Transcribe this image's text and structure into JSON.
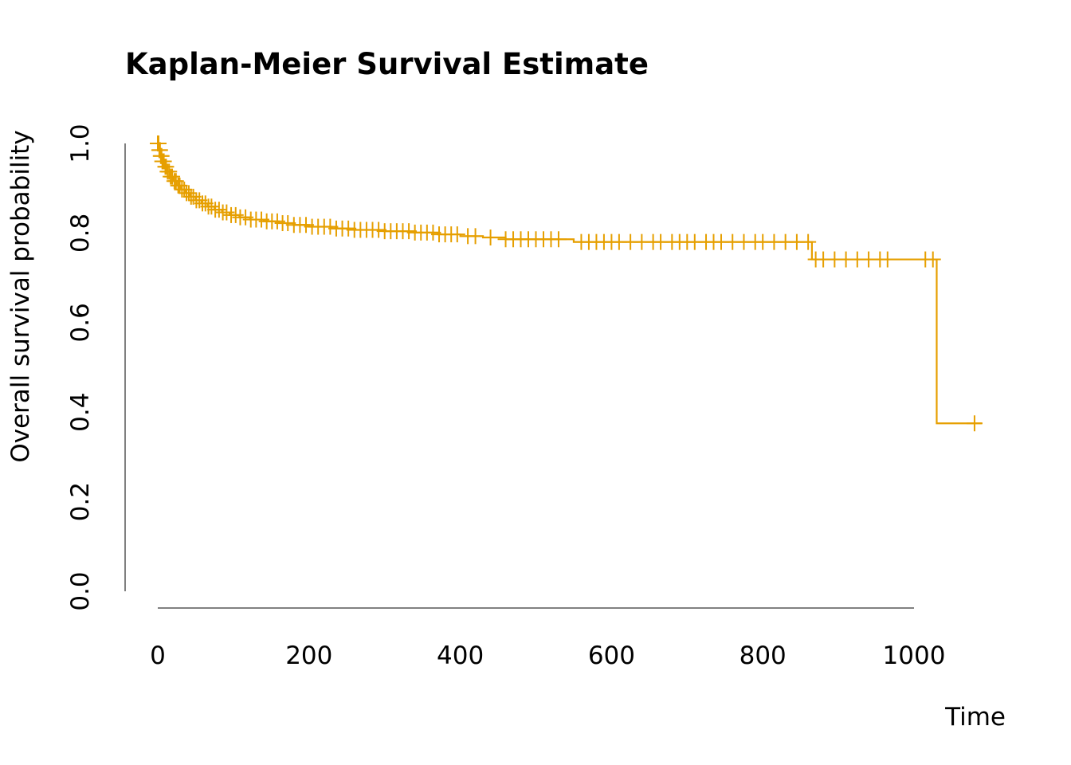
{
  "chart_data": {
    "type": "line",
    "subtype": "kaplan-meier-step",
    "title": "Kaplan-Meier Survival Estimate",
    "xlabel": "Time",
    "ylabel": "Overall survival probability",
    "xlim": [
      0,
      1000
    ],
    "ylim": [
      0,
      1.0
    ],
    "x_ticks": [
      0,
      200,
      400,
      600,
      800,
      1000
    ],
    "x_tick_labels": [
      "0",
      "200",
      "400",
      "600",
      "800",
      "1000"
    ],
    "y_ticks": [
      0,
      0.2,
      0.4,
      0.6,
      0.8,
      1.0
    ],
    "y_tick_labels": [
      "0.0",
      "0.2",
      "0.4",
      "0.6",
      "0.8",
      "1.0"
    ],
    "grid": false,
    "legend": "none",
    "color": "#E69F00",
    "series": [
      {
        "steps": [
          [
            0,
            1.0
          ],
          [
            2,
            0.985
          ],
          [
            4,
            0.972
          ],
          [
            6,
            0.96
          ],
          [
            9,
            0.948
          ],
          [
            12,
            0.937
          ],
          [
            16,
            0.926
          ],
          [
            20,
            0.916
          ],
          [
            25,
            0.906
          ],
          [
            30,
            0.897
          ],
          [
            36,
            0.889
          ],
          [
            42,
            0.881
          ],
          [
            50,
            0.873
          ],
          [
            58,
            0.866
          ],
          [
            66,
            0.859
          ],
          [
            75,
            0.852
          ],
          [
            85,
            0.846
          ],
          [
            95,
            0.84
          ],
          [
            108,
            0.835
          ],
          [
            122,
            0.83
          ],
          [
            140,
            0.826
          ],
          [
            160,
            0.822
          ],
          [
            180,
            0.818
          ],
          [
            200,
            0.814
          ],
          [
            230,
            0.81
          ],
          [
            260,
            0.807
          ],
          [
            300,
            0.804
          ],
          [
            340,
            0.801
          ],
          [
            370,
            0.797
          ],
          [
            400,
            0.793
          ],
          [
            430,
            0.79
          ],
          [
            460,
            0.786
          ],
          [
            550,
            0.78
          ],
          [
            865,
            0.741
          ],
          [
            1030,
            0.375
          ],
          [
            1090,
            0.375
          ]
        ],
        "censor_times": [
          0,
          1,
          1,
          2,
          3,
          4,
          5,
          6,
          7,
          8,
          10,
          11,
          13,
          15,
          17,
          19,
          22,
          24,
          27,
          29,
          32,
          35,
          38,
          41,
          44,
          47,
          51,
          55,
          59,
          63,
          67,
          71,
          76,
          81,
          86,
          91,
          97,
          103,
          109,
          116,
          123,
          130,
          137,
          144,
          151,
          158,
          165,
          172,
          180,
          188,
          196,
          204,
          212,
          220,
          228,
          236,
          244,
          252,
          260,
          268,
          276,
          284,
          292,
          300,
          308,
          316,
          324,
          332,
          340,
          348,
          356,
          364,
          372,
          380,
          388,
          396,
          410,
          420,
          440,
          460,
          470,
          480,
          490,
          500,
          510,
          520,
          530,
          560,
          570,
          580,
          590,
          600,
          610,
          625,
          640,
          655,
          665,
          680,
          690,
          700,
          710,
          725,
          735,
          745,
          760,
          775,
          790,
          800,
          815,
          830,
          845,
          860,
          870,
          880,
          895,
          910,
          925,
          940,
          955,
          965,
          1015,
          1025,
          1080
        ]
      }
    ]
  }
}
